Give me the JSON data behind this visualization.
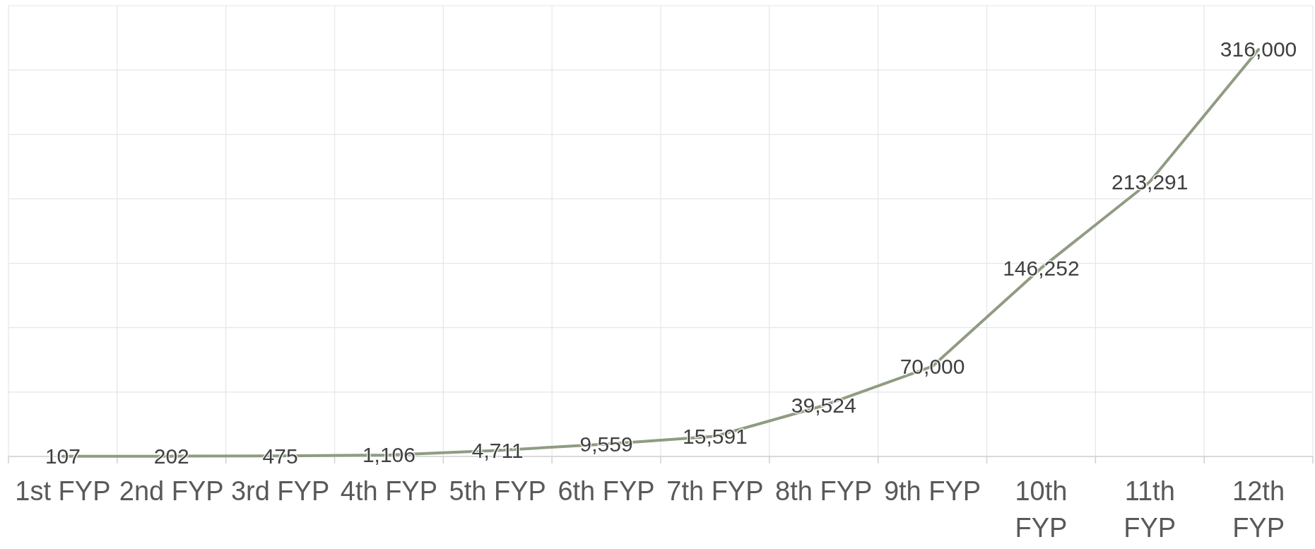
{
  "chart_data": {
    "type": "line",
    "categories": [
      "1st FYP",
      "2nd FYP",
      "3rd FYP",
      "4th FYP",
      "5th FYP",
      "6th FYP",
      "7th FYP",
      "8th FYP",
      "9th FYP",
      "10th FYP",
      "11th FYP",
      "12th FYP"
    ],
    "series": [
      {
        "color": "#8f9c82",
        "values": [
          107,
          202,
          475,
          1106,
          4711,
          9559,
          15591,
          39524,
          70000,
          146252,
          213291,
          316000
        ],
        "value_labels": [
          "107",
          "202",
          "475",
          "1,106",
          "4,711",
          "9,559",
          "15,591",
          "39,524",
          "70,000",
          "146,252",
          "213,291",
          "316,000"
        ]
      }
    ],
    "ylim": [
      0,
      350000
    ],
    "yticks": [
      {
        "value": 0,
        "label": null
      },
      {
        "value": 50000,
        "label": null
      },
      {
        "value": 100000,
        "label": null
      },
      {
        "value": 150000,
        "label": null
      },
      {
        "value": 200000,
        "label": null
      },
      {
        "value": 250000,
        "label": null
      },
      {
        "value": 300000,
        "label": null
      },
      {
        "value": 350000,
        "label": null
      }
    ],
    "tick_labels": "x",
    "grid": true,
    "marker": "none",
    "line_style": "solid"
  }
}
